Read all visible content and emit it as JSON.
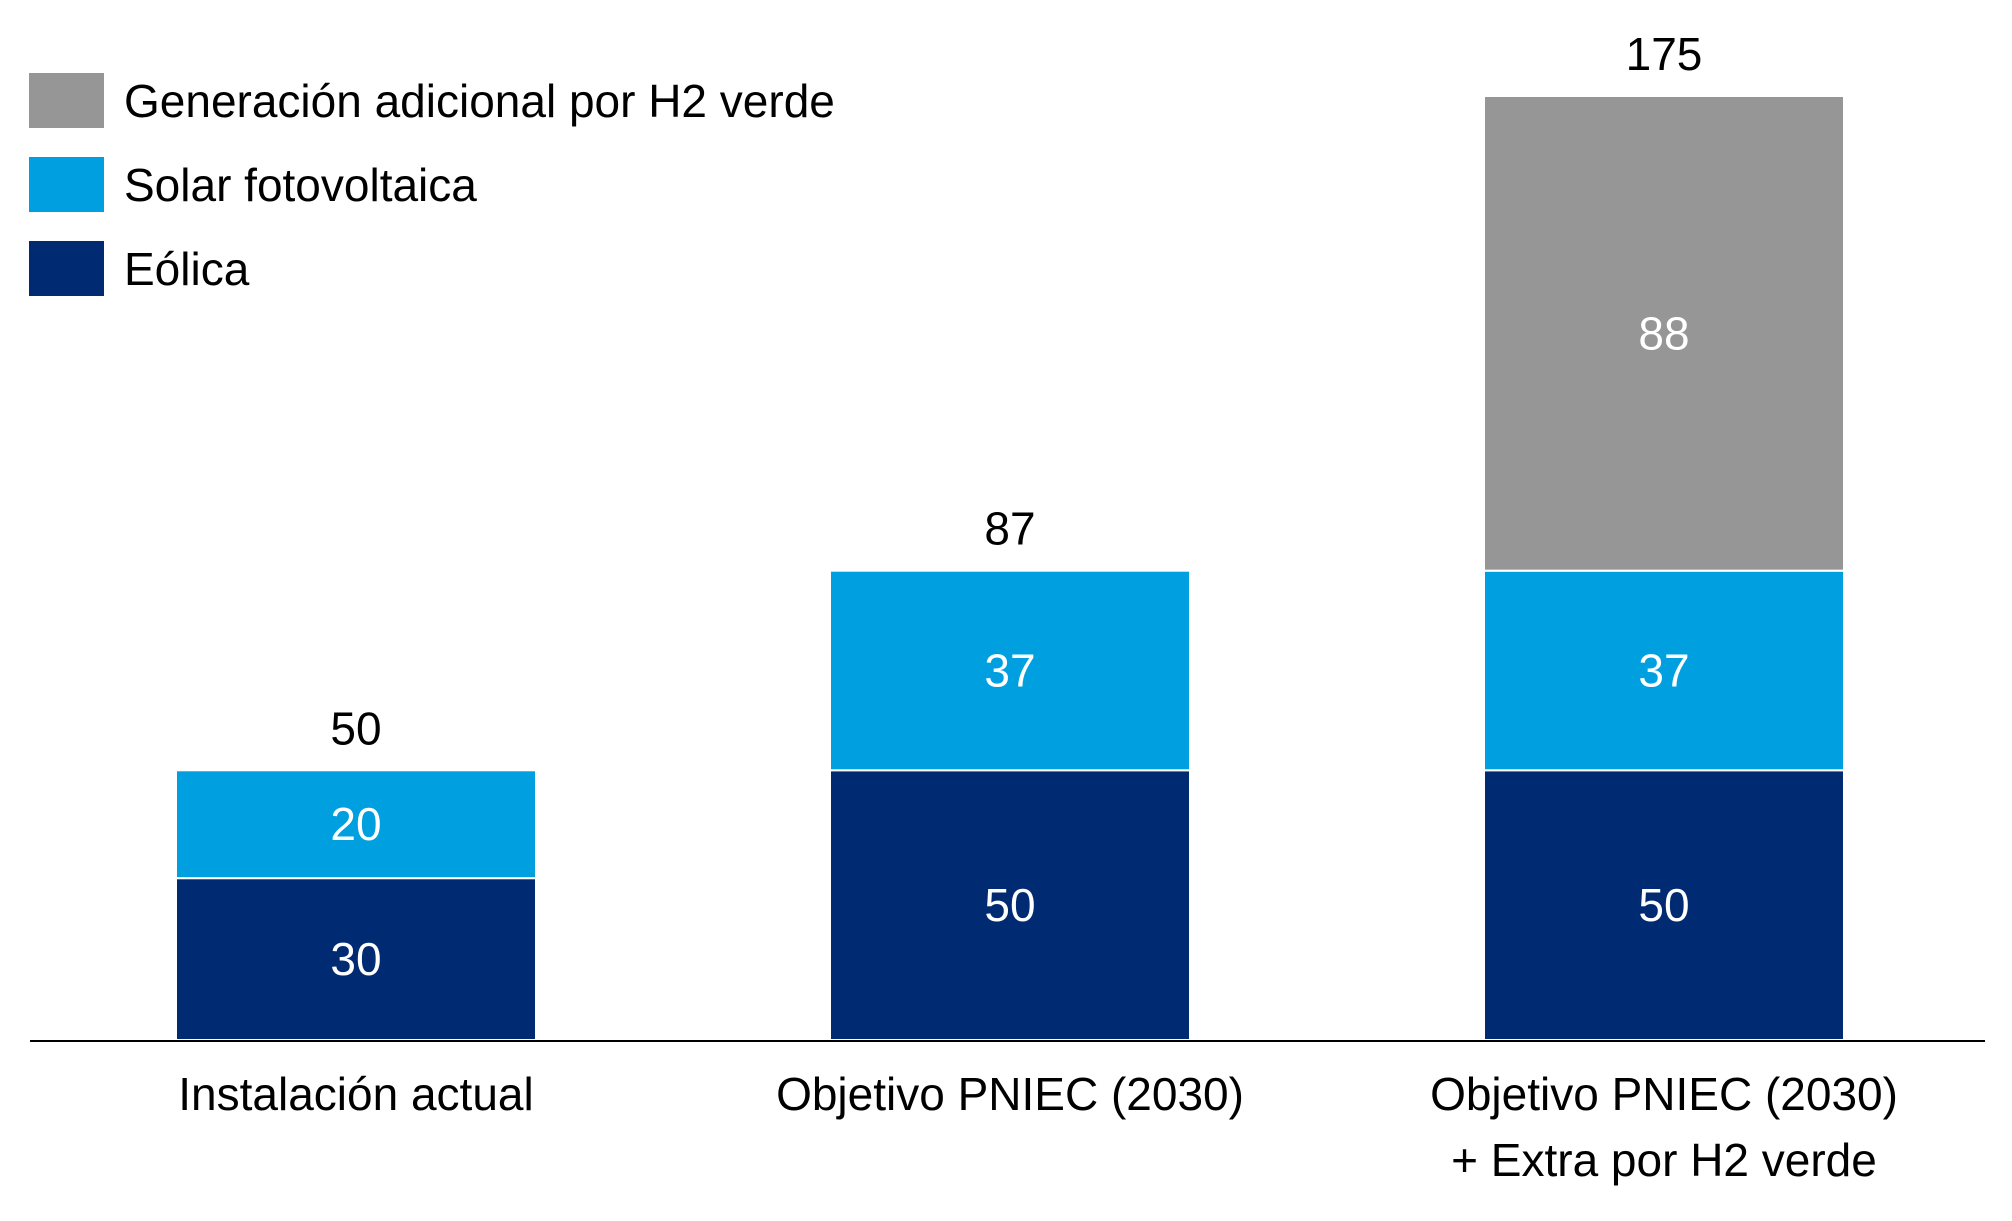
{
  "chart_data": {
    "type": "bar",
    "stacked": true,
    "categories": [
      [
        "Instalación actual"
      ],
      [
        "Objetivo PNIEC (2030)"
      ],
      [
        "Objetivo PNIEC (2030)",
        "+ Extra por H2 verde"
      ]
    ],
    "series": [
      {
        "name": "Eólica",
        "color": "#002b72",
        "values": [
          30,
          50,
          50
        ]
      },
      {
        "name": "Solar fotovoltaica",
        "color": "#00a0e0",
        "values": [
          20,
          37,
          37
        ]
      },
      {
        "name": "Generación adicional por H2 verde",
        "color": "#969696",
        "values": [
          0,
          0,
          88
        ]
      }
    ],
    "totals": [
      "50",
      "87",
      "175"
    ],
    "legend": {
      "placement": "top-left",
      "order": [
        "Generación adicional por H2 verde",
        "Solar fotovoltaica",
        "Eólica"
      ]
    },
    "ylim": [
      0,
      175
    ],
    "grid": false,
    "title": "",
    "xlabel": "",
    "ylabel": ""
  }
}
